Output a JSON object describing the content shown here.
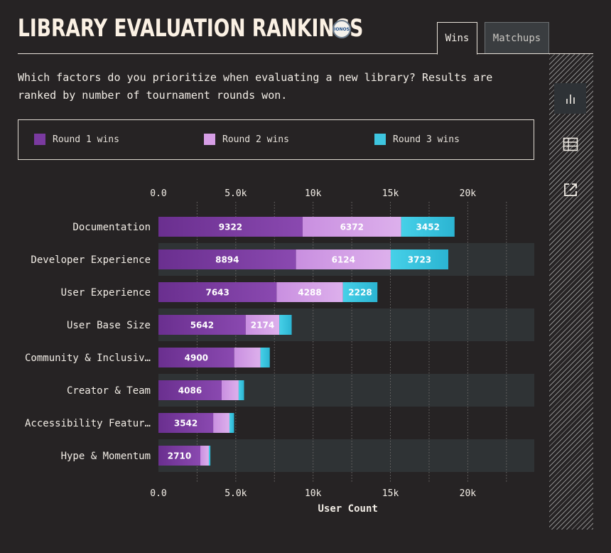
{
  "header": {
    "title": "LIBRARY EVALUATION RANKINGS",
    "logo_text": "IONOS"
  },
  "tabs": [
    {
      "label": "Wins"
    },
    {
      "label": "Matchups"
    }
  ],
  "intro": "Which factors do you prioritize when evaluating a new library? Results are\nranked by number of tournament rounds won.",
  "sidebar": [
    {
      "icon": "bar-chart-icon"
    },
    {
      "icon": "table-icon"
    },
    {
      "icon": "external-link-icon"
    }
  ],
  "colors": {
    "round1": "#7a3aa0",
    "round2": "#d69ee6",
    "round3": "#3ec6e0",
    "row_band": "#2f3335",
    "background": "#262324"
  },
  "chart_data": {
    "type": "bar",
    "orientation": "horizontal",
    "stacked": true,
    "categories": [
      "Documentation",
      "Developer Experience",
      "User Experience",
      "User Base Size",
      "Community & Inclusiv…",
      "Creator & Team",
      "Accessibility Featur…",
      "Hype & Momentum"
    ],
    "series": [
      {
        "name": "Round 1 wins",
        "values": [
          9322,
          8894,
          7643,
          5642,
          4900,
          4086,
          3542,
          2710
        ],
        "labels": [
          "9322",
          "8894",
          "7643",
          "5642",
          "4900",
          "4086",
          "3542",
          "2710"
        ]
      },
      {
        "name": "Round 2 wins",
        "values": [
          6372,
          6124,
          4288,
          2174,
          1700,
          1100,
          1050,
          550
        ],
        "labels": [
          "6372",
          "6124",
          "4288",
          "2174",
          "",
          "",
          "",
          ""
        ]
      },
      {
        "name": "Round 3 wins",
        "values": [
          3452,
          3723,
          2228,
          800,
          600,
          350,
          300,
          100
        ],
        "labels": [
          "3452",
          "3723",
          "2228",
          "",
          "",
          "",
          "",
          ""
        ]
      }
    ],
    "xticks": [
      0,
      5000,
      10000,
      15000,
      20000
    ],
    "xtick_labels": [
      "0.0",
      "5.0k",
      "10k",
      "15k",
      "20k"
    ],
    "xlim": [
      0,
      24300
    ],
    "xlabel": "User Count",
    "grid": true,
    "legend": "top"
  }
}
